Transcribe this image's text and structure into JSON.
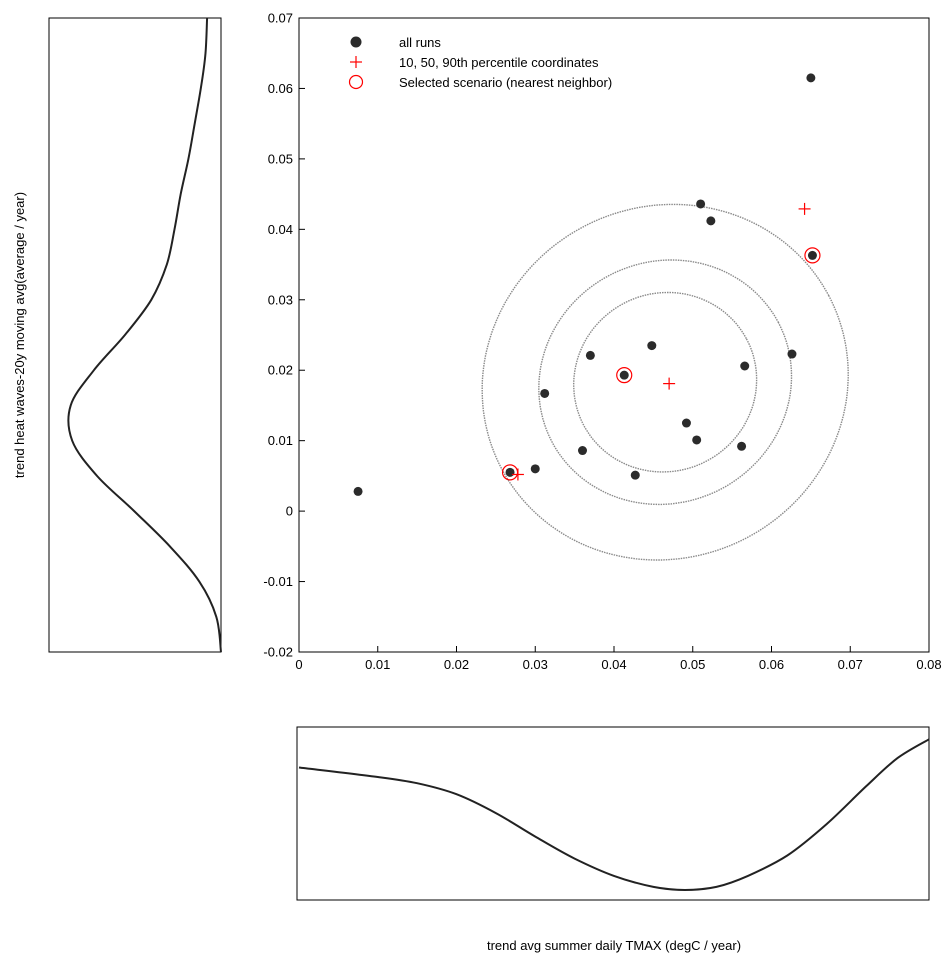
{
  "chart_data": {
    "type": "scatter",
    "xlabel": "trend avg summer daily TMAX (degC / year)",
    "ylabel": "trend heat waves-20y moving avg(average / year)",
    "xlim": [
      0,
      0.08
    ],
    "ylim": [
      -0.02,
      0.07
    ],
    "x_ticks": [
      "0",
      "0.01",
      "0.02",
      "0.03",
      "0.04",
      "0.05",
      "0.06",
      "0.07",
      "0.08"
    ],
    "y_ticks": [
      "-0.02",
      "-0.01",
      "0",
      "0.01",
      "0.02",
      "0.03",
      "0.04",
      "0.05",
      "0.06",
      "0.07"
    ],
    "grid": false,
    "legend_position": "top-left",
    "legend": [
      {
        "label": "all runs",
        "marker": "filled-circle",
        "color": "#2b2b2b"
      },
      {
        "label": "10, 50, 90th percentile coordinates",
        "marker": "plus",
        "color": "#ff0000"
      },
      {
        "label": "Selected scenario (nearest neighbor)",
        "marker": "open-circle",
        "color": "#ff0000"
      }
    ],
    "series": [
      {
        "name": "all runs",
        "points": [
          {
            "x": 0.0075,
            "y": 0.0028
          },
          {
            "x": 0.0268,
            "y": 0.0055
          },
          {
            "x": 0.03,
            "y": 0.006
          },
          {
            "x": 0.0312,
            "y": 0.0167
          },
          {
            "x": 0.036,
            "y": 0.0086
          },
          {
            "x": 0.037,
            "y": 0.0221
          },
          {
            "x": 0.0413,
            "y": 0.0193
          },
          {
            "x": 0.0427,
            "y": 0.0051
          },
          {
            "x": 0.0448,
            "y": 0.0235
          },
          {
            "x": 0.0492,
            "y": 0.0125
          },
          {
            "x": 0.0505,
            "y": 0.0101
          },
          {
            "x": 0.051,
            "y": 0.0436
          },
          {
            "x": 0.0523,
            "y": 0.0412
          },
          {
            "x": 0.0562,
            "y": 0.0092
          },
          {
            "x": 0.0566,
            "y": 0.0206
          },
          {
            "x": 0.0626,
            "y": 0.0223
          },
          {
            "x": 0.065,
            "y": 0.0615
          },
          {
            "x": 0.0652,
            "y": 0.0363
          }
        ]
      },
      {
        "name": "10, 50, 90th percentile coordinates",
        "points": [
          {
            "x": 0.0278,
            "y": 0.0052
          },
          {
            "x": 0.047,
            "y": 0.0181
          },
          {
            "x": 0.0642,
            "y": 0.0429
          }
        ]
      },
      {
        "name": "Selected scenario (nearest neighbor)",
        "points": [
          {
            "x": 0.0268,
            "y": 0.0055
          },
          {
            "x": 0.0413,
            "y": 0.0193
          },
          {
            "x": 0.0652,
            "y": 0.0363
          }
        ]
      }
    ],
    "contours": [
      {
        "cx": 0.0465,
        "cy": 0.0183,
        "rx": 0.0234,
        "ry": 0.0218,
        "rot_deg": -28
      },
      {
        "cx": 0.0465,
        "cy": 0.0183,
        "rx": 0.0325,
        "ry": 0.0295,
        "rot_deg": -28
      },
      {
        "cx": 0.0465,
        "cy": 0.0183,
        "rx": 0.047,
        "ry": 0.043,
        "rot_deg": -28
      }
    ],
    "marginal_x": {
      "x": [
        0.0,
        0.01,
        0.015,
        0.02,
        0.025,
        0.03,
        0.035,
        0.04,
        0.045,
        0.049,
        0.053,
        0.057,
        0.062,
        0.067,
        0.072,
        0.076,
        0.08
      ],
      "density": [
        0.78,
        0.72,
        0.68,
        0.61,
        0.49,
        0.34,
        0.2,
        0.09,
        0.02,
        0.0,
        0.02,
        0.09,
        0.22,
        0.42,
        0.66,
        0.84,
        0.96
      ]
    },
    "marginal_y": {
      "y": [
        -0.02,
        -0.015,
        -0.01,
        -0.005,
        0.0,
        0.005,
        0.01,
        0.015,
        0.02,
        0.025,
        0.03,
        0.035,
        0.04,
        0.045,
        0.05,
        0.055,
        0.06,
        0.065,
        0.07
      ],
      "density": [
        0.0,
        0.03,
        0.14,
        0.33,
        0.56,
        0.8,
        0.96,
        0.97,
        0.82,
        0.62,
        0.45,
        0.35,
        0.3,
        0.26,
        0.21,
        0.17,
        0.13,
        0.1,
        0.09
      ]
    }
  }
}
